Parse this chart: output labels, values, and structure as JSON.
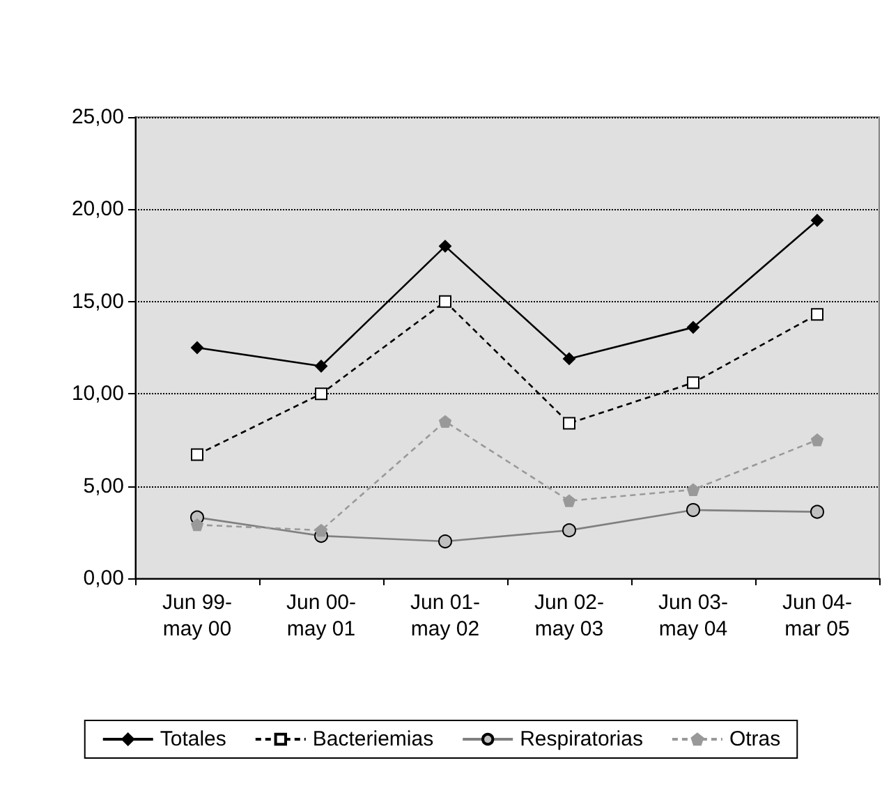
{
  "chart_data": {
    "type": "line",
    "categories": [
      "Jun 99-\nmay 00",
      "Jun 00-\nmay 01",
      "Jun 01-\nmay 02",
      "Jun 02-\nmay 03",
      "Jun 03-\nmay 04",
      "Jun 04-\nmar 05"
    ],
    "series": [
      {
        "name": "Totales",
        "color": "#000000",
        "marker": "diamond",
        "line_style": "solid",
        "values": [
          12.5,
          11.5,
          18.0,
          11.9,
          13.6,
          19.4
        ]
      },
      {
        "name": "Bacteriemias",
        "color": "#000000",
        "marker": "square",
        "line_style": "dashed",
        "values": [
          6.7,
          10.0,
          15.0,
          8.4,
          10.6,
          14.3
        ]
      },
      {
        "name": "Respiratorias",
        "color": "#808080",
        "marker": "circle",
        "line_style": "solid",
        "values": [
          3.3,
          2.3,
          2.0,
          2.6,
          3.7,
          3.6
        ]
      },
      {
        "name": "Otras",
        "color": "#999999",
        "marker": "star",
        "line_style": "dashed",
        "values": [
          2.9,
          2.6,
          8.5,
          4.2,
          4.8,
          7.5
        ]
      }
    ],
    "ylim": [
      0,
      25
    ],
    "yticks": [
      {
        "value": 0,
        "label": "0,00"
      },
      {
        "value": 5,
        "label": "5,00"
      },
      {
        "value": 10,
        "label": "10,00"
      },
      {
        "value": 15,
        "label": "15,00"
      },
      {
        "value": 20,
        "label": "20,00"
      },
      {
        "value": 25,
        "label": "25,00"
      }
    ],
    "grid": "y",
    "legend": "bottom"
  }
}
